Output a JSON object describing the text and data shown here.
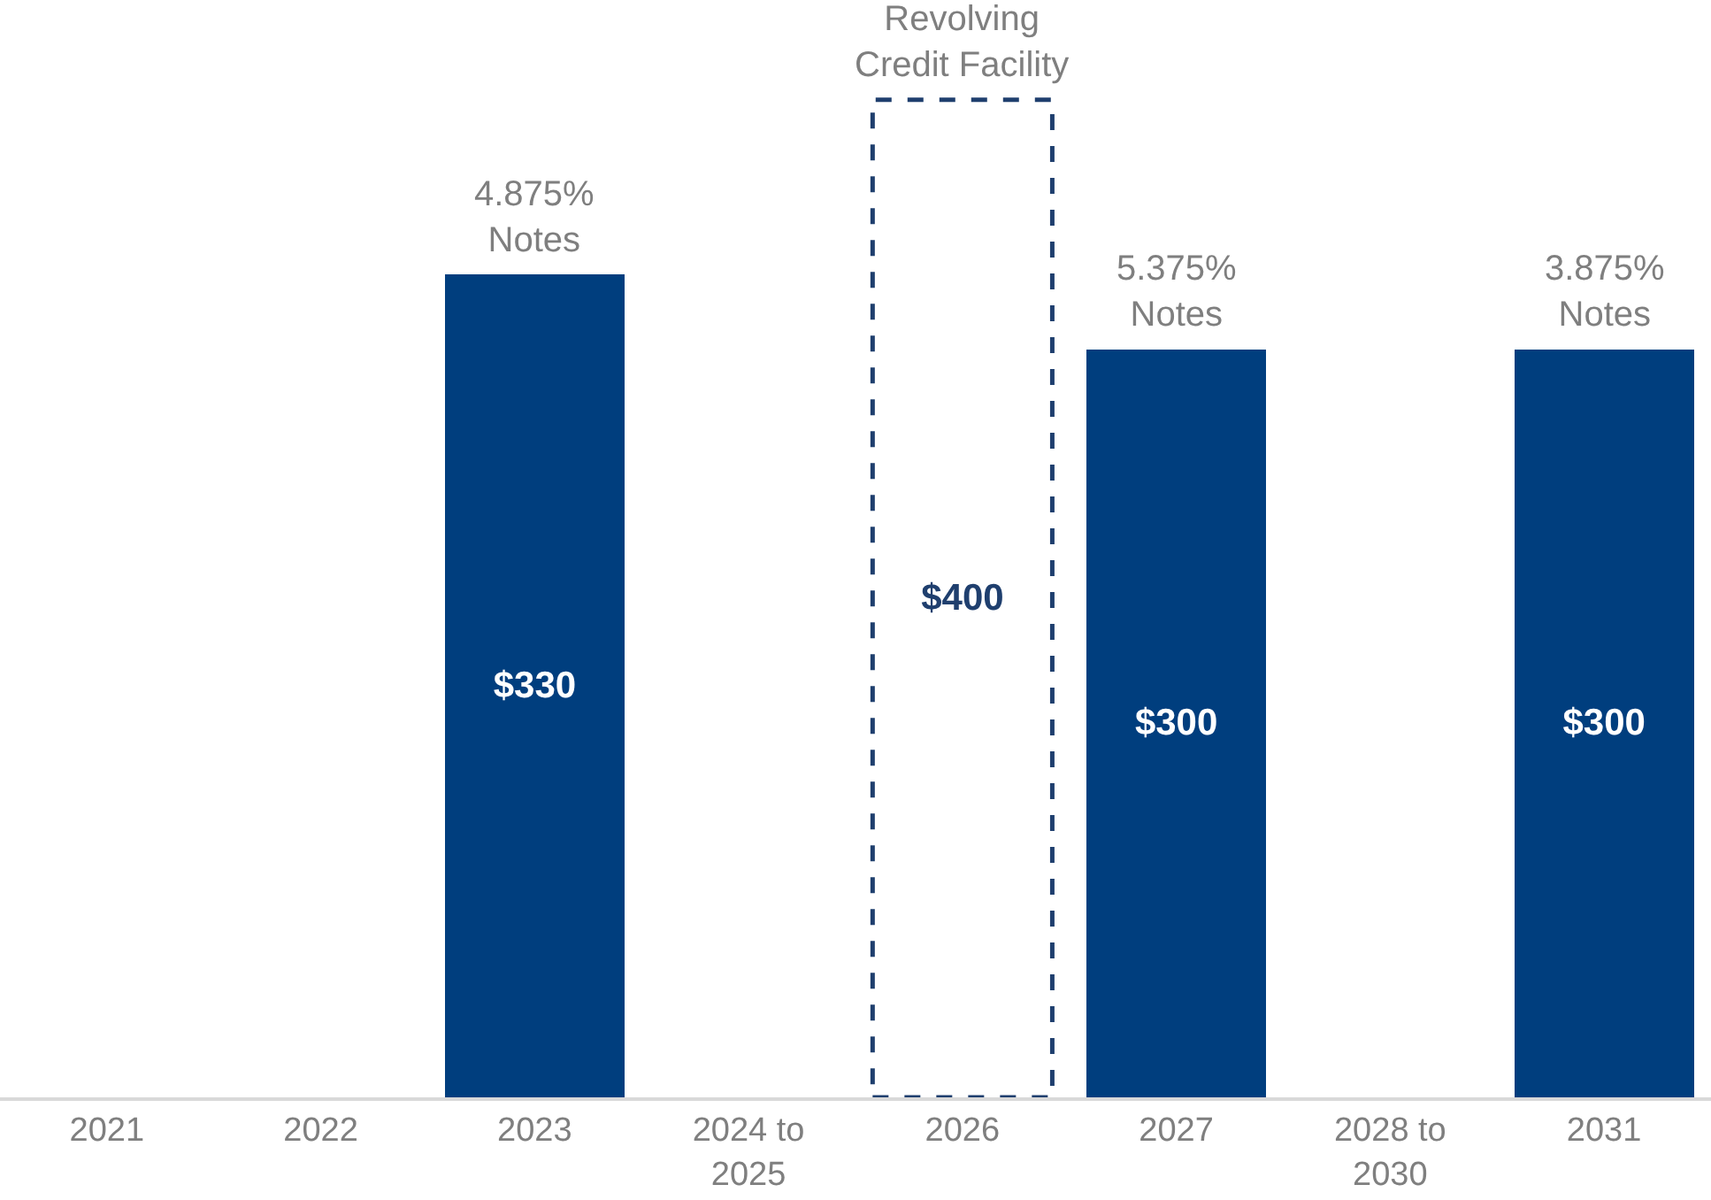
{
  "chart_data": {
    "type": "bar",
    "categories": [
      "2021",
      "2022",
      "2023",
      "2024 to\n2025",
      "2026",
      "2027",
      "2028 to\n2030",
      "2031"
    ],
    "series": [
      {
        "color": "#003e7e",
        "values": [
          null,
          null,
          330,
          null,
          null,
          300,
          null,
          300
        ],
        "value_labels": [
          null,
          null,
          "$330",
          null,
          null,
          "$300",
          null,
          "$300"
        ]
      },
      {
        "color": "#1f3f6e",
        "line_style": "dashed",
        "values": [
          null,
          null,
          null,
          null,
          400,
          null,
          null,
          null
        ],
        "value_labels": [
          null,
          null,
          null,
          null,
          "$400",
          null,
          null,
          null
        ]
      }
    ],
    "stacked": true,
    "annotations": [
      {
        "text": "4.875%\nNotes",
        "x": "2023",
        "y": 330
      },
      {
        "text": "Revolving\nCredit Facility",
        "x": "2026",
        "y": 400
      },
      {
        "text": "5.375%\nNotes",
        "x": "2027",
        "y": 300
      },
      {
        "text": "3.875%\nNotes",
        "x": "2031",
        "y": 300
      }
    ]
  }
}
